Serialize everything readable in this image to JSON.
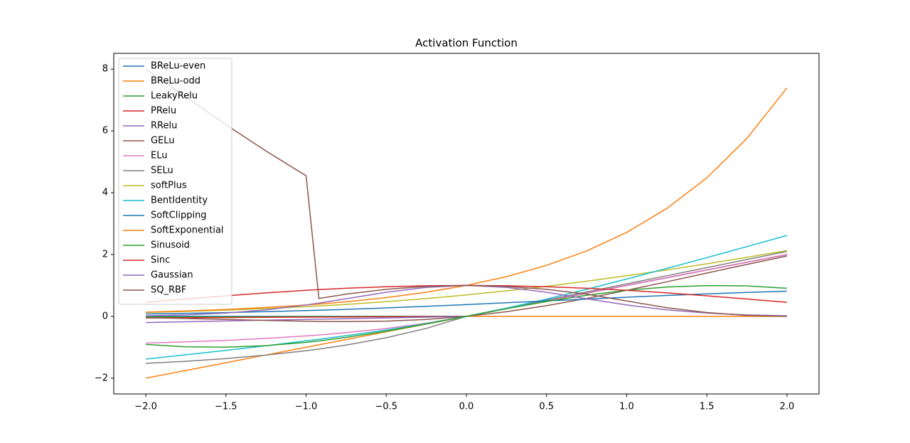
{
  "chart_data": {
    "type": "line",
    "title": "Activation Function",
    "x": [
      -2,
      -1.75,
      -1.5,
      -1.25,
      -1,
      -0.92,
      -0.75,
      -0.5,
      -0.25,
      0,
      0.25,
      0.5,
      0.75,
      1,
      1.25,
      1.5,
      1.75,
      2
    ],
    "xlim": [
      -2.2,
      2.2
    ],
    "ylim": [
      -2.51,
      8.51
    ],
    "xticks": [
      {
        "value": -2,
        "label": "−2.0"
      },
      {
        "value": -1.5,
        "label": "−1.5"
      },
      {
        "value": -1,
        "label": "−1.0"
      },
      {
        "value": -0.5,
        "label": "−0.5"
      },
      {
        "value": 0,
        "label": "0.0"
      },
      {
        "value": 0.5,
        "label": "0.5"
      },
      {
        "value": 1,
        "label": "1.0"
      },
      {
        "value": 1.5,
        "label": "1.5"
      },
      {
        "value": 2,
        "label": "2.0"
      }
    ],
    "yticks": [
      {
        "value": -2,
        "label": "−2"
      },
      0,
      2,
      4,
      6,
      8
    ],
    "legend": "upper left",
    "series": [
      {
        "name": "BReLu-even",
        "color": "#1f77b4",
        "values": [
          0,
          0,
          0,
          0,
          0,
          0,
          0,
          0,
          0,
          0,
          0.25,
          0.5,
          0.75,
          1,
          1.25,
          1.5,
          1.75,
          2
        ]
      },
      {
        "name": "BReLu-odd",
        "color": "#ff7f0e",
        "values": [
          -2,
          -1.75,
          -1.5,
          -1.25,
          -1,
          -0.92,
          -0.75,
          -0.5,
          -0.25,
          0,
          0,
          0,
          0,
          0,
          0,
          0,
          0,
          0
        ]
      },
      {
        "name": "LeakyRelu",
        "color": "#2ca02c",
        "values": [
          -0.02,
          -0.0175,
          -0.015,
          -0.0125,
          -0.01,
          -0.0092,
          -0.0075,
          -0.005,
          -0.0025,
          0,
          0.25,
          0.5,
          0.75,
          1,
          1.25,
          1.5,
          1.75,
          2
        ]
      },
      {
        "name": "PRelu",
        "color": "#d62728",
        "values": [
          -0.05,
          -0.044,
          -0.038,
          -0.031,
          -0.025,
          -0.023,
          -0.019,
          -0.013,
          -0.006,
          0,
          0.25,
          0.5,
          0.75,
          1,
          1.25,
          1.5,
          1.75,
          2
        ]
      },
      {
        "name": "RRelu",
        "color": "#9467bd",
        "values": [
          -0.2,
          -0.175,
          -0.15,
          -0.125,
          -0.1,
          -0.092,
          -0.075,
          -0.05,
          -0.025,
          0,
          0.25,
          0.5,
          0.75,
          1,
          1.25,
          1.5,
          1.75,
          2
        ]
      },
      {
        "name": "GELu",
        "color": "#8c564b",
        "values": [
          -0.046,
          -0.07,
          -0.1,
          -0.132,
          -0.159,
          -0.165,
          -0.17,
          -0.154,
          -0.1,
          0,
          0.15,
          0.346,
          0.58,
          0.841,
          1.118,
          1.4,
          1.68,
          1.954
        ]
      },
      {
        "name": "ELu",
        "color": "#e377c2",
        "values": [
          -0.865,
          -0.826,
          -0.777,
          -0.714,
          -0.632,
          -0.602,
          -0.528,
          -0.393,
          -0.221,
          0,
          0.25,
          0.5,
          0.75,
          1,
          1.25,
          1.5,
          1.75,
          2
        ]
      },
      {
        "name": "SELu",
        "color": "#7f7f7f",
        "values": [
          -1.521,
          -1.453,
          -1.366,
          -1.254,
          -1.111,
          -1.058,
          -0.928,
          -0.692,
          -0.389,
          0,
          0.263,
          0.525,
          0.788,
          1.051,
          1.313,
          1.576,
          1.839,
          2.101
        ]
      },
      {
        "name": "softPlus",
        "color": "#bcbd22",
        "values": [
          0.127,
          0.16,
          0.201,
          0.252,
          0.313,
          0.335,
          0.386,
          0.474,
          0.576,
          0.693,
          0.826,
          0.974,
          1.136,
          1.313,
          1.502,
          1.701,
          1.91,
          2.127
        ]
      },
      {
        "name": "BentIdentity",
        "color": "#17becf",
        "values": [
          -1.382,
          -1.242,
          -1.099,
          -0.95,
          -0.793,
          -0.741,
          -0.625,
          -0.441,
          -0.235,
          0,
          0.265,
          0.559,
          0.875,
          1.207,
          1.55,
          1.901,
          2.258,
          2.618
        ]
      },
      {
        "name": "SoftClipping",
        "color": "#1f77b4",
        "values": [
          0.078,
          0.098,
          0.122,
          0.152,
          0.186,
          0.198,
          0.226,
          0.273,
          0.324,
          0.38,
          0.44,
          0.5,
          0.56,
          0.62,
          0.676,
          0.727,
          0.774,
          0.814
        ]
      },
      {
        "name": "SoftExponential",
        "color": "#ff7f0e",
        "values": [
          0.135,
          0.174,
          0.223,
          0.287,
          0.368,
          0.399,
          0.472,
          0.607,
          0.779,
          1,
          1.284,
          1.649,
          2.117,
          2.718,
          3.49,
          4.482,
          5.755,
          7.389
        ]
      },
      {
        "name": "Sinusoid",
        "color": "#2ca02c",
        "values": [
          -0.909,
          -0.984,
          -0.997,
          -0.949,
          -0.841,
          -0.796,
          -0.682,
          -0.479,
          -0.247,
          0,
          0.247,
          0.479,
          0.682,
          0.841,
          0.949,
          0.997,
          0.984,
          0.909
        ]
      },
      {
        "name": "Sinc",
        "color": "#d62728",
        "values": [
          0.455,
          0.562,
          0.665,
          0.759,
          0.841,
          0.865,
          0.909,
          0.959,
          0.99,
          1,
          0.99,
          0.959,
          0.909,
          0.841,
          0.759,
          0.665,
          0.562,
          0.455
        ]
      },
      {
        "name": "Gaussian",
        "color": "#9467bd",
        "values": [
          0.018,
          0.047,
          0.105,
          0.21,
          0.368,
          0.429,
          0.57,
          0.779,
          0.939,
          1,
          0.939,
          0.779,
          0.57,
          0.368,
          0.21,
          0.105,
          0.047,
          0.018
        ]
      },
      {
        "name": "SQ_RBF",
        "color": "#8c564b",
        "values": [
          8,
          7.1,
          6.2,
          5.35,
          4.55,
          0.577,
          0.719,
          0.875,
          0.969,
          1,
          0.969,
          0.875,
          0.719,
          0.5,
          0.281,
          0.125,
          0.031,
          0
        ]
      }
    ]
  }
}
